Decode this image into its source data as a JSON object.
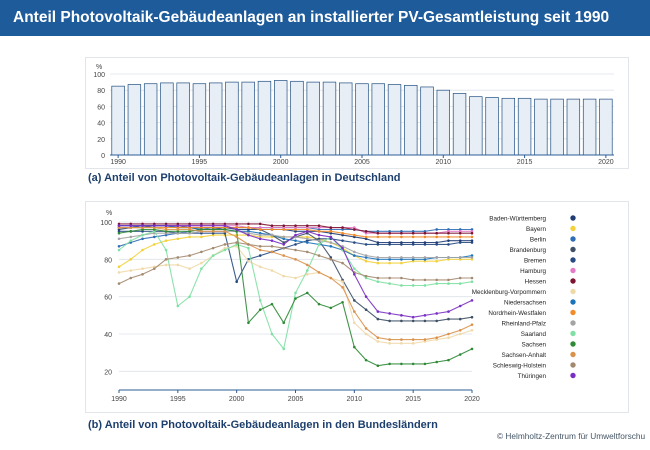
{
  "header": {
    "title": "Anteil Photovoltaik-Gebäudeanlagen an installierter PV-Gesamtleistung seit 1990"
  },
  "captions": {
    "a": "(a) Anteil von Photovoltaik-Gebäudeanlagen in Deutschland",
    "b": "(b) Anteil von Photovoltaik-Gebäudeanlagen in den Bundesländern"
  },
  "footer": {
    "copyright": "© Helmholtz-Zentrum für Umweltforschu"
  },
  "colors": {
    "header_bg": "#1d5b9b",
    "bar_fill": "#e8eef5",
    "bar_stroke": "#1f4f82",
    "grid": "#dde3ea"
  },
  "chart_data": [
    {
      "type": "bar",
      "ylabel": "%",
      "ylim": [
        0,
        100
      ],
      "yticks": [
        0,
        20,
        40,
        60,
        80,
        100
      ],
      "xticks": [
        1990,
        1995,
        2000,
        2005,
        2010,
        2015,
        2020
      ],
      "grid": true,
      "categories": [
        1990,
        1991,
        1992,
        1993,
        1994,
        1995,
        1996,
        1997,
        1998,
        1999,
        2000,
        2001,
        2002,
        2003,
        2004,
        2005,
        2006,
        2007,
        2008,
        2009,
        2010,
        2011,
        2012,
        2013,
        2014,
        2015,
        2016,
        2017,
        2018,
        2019,
        2020
      ],
      "values": [
        85,
        87,
        88,
        89,
        89,
        88,
        89,
        90,
        90,
        91,
        92,
        91,
        90,
        90,
        89,
        88,
        88,
        87,
        86,
        84,
        80,
        76,
        72,
        71,
        70,
        70,
        69,
        69,
        69,
        69,
        69
      ]
    },
    {
      "type": "line",
      "ylabel": "%",
      "ylim": [
        10,
        100
      ],
      "yticks": [
        20,
        40,
        60,
        80,
        100
      ],
      "xlim": [
        1990,
        2020
      ],
      "xticks": [
        1990,
        1995,
        2000,
        2005,
        2010,
        2015,
        2020
      ],
      "grid": true,
      "legend_position": "right",
      "x": [
        1990,
        1991,
        1992,
        1993,
        1994,
        1995,
        1996,
        1997,
        1998,
        1999,
        2000,
        2001,
        2002,
        2003,
        2004,
        2005,
        2006,
        2007,
        2008,
        2009,
        2010,
        2011,
        2012,
        2013,
        2014,
        2015,
        2016,
        2017,
        2018,
        2019,
        2020
      ],
      "series": [
        {
          "name": "Baden-Württemberg",
          "color": "#1f3c73",
          "values": [
            96,
            97,
            98,
            98,
            98,
            97,
            97,
            96,
            96,
            97,
            96,
            96,
            96,
            96,
            96,
            95,
            95,
            95,
            94,
            93,
            92,
            91,
            89,
            89,
            89,
            89,
            89,
            89,
            90,
            90,
            90
          ]
        },
        {
          "name": "Bayern",
          "color": "#f2d13a",
          "values": [
            76,
            80,
            85,
            88,
            90,
            91,
            92,
            92,
            93,
            93,
            93,
            93,
            92,
            92,
            92,
            92,
            92,
            91,
            89,
            86,
            82,
            79,
            78,
            78,
            78,
            79,
            79,
            79,
            80,
            80,
            80
          ]
        },
        {
          "name": "Berlin",
          "color": "#2f6db5",
          "values": [
            87,
            89,
            91,
            92,
            93,
            94,
            95,
            96,
            97,
            97,
            97,
            97,
            97,
            97,
            97,
            97,
            97,
            96,
            96,
            96,
            96,
            95,
            95,
            95,
            95,
            95,
            95,
            96,
            96,
            96,
            96
          ]
        },
        {
          "name": "Brandenburg",
          "color": "#3e4f66",
          "values": [
            97,
            97,
            97,
            98,
            98,
            98,
            97,
            97,
            97,
            97,
            97,
            97,
            96,
            93,
            89,
            92,
            94,
            90,
            81,
            69,
            58,
            53,
            48,
            47,
            47,
            47,
            47,
            47,
            48,
            48,
            49
          ]
        },
        {
          "name": "Bremen",
          "color": "#274a82",
          "values": [
            95,
            95,
            95,
            95,
            95,
            94,
            94,
            94,
            94,
            94,
            68,
            80,
            82,
            84,
            86,
            88,
            90,
            91,
            91,
            90,
            89,
            88,
            88,
            88,
            88,
            88,
            88,
            88,
            88,
            89,
            89
          ]
        },
        {
          "name": "Hamburg",
          "color": "#e37bc9",
          "values": [
            98,
            98,
            98,
            98,
            98,
            98,
            98,
            98,
            98,
            98,
            98,
            97,
            97,
            97,
            97,
            97,
            97,
            97,
            97,
            97,
            97,
            94,
            94,
            94,
            94,
            94,
            94,
            94,
            95,
            95,
            95
          ]
        },
        {
          "name": "Hessen",
          "color": "#7e1433",
          "values": [
            99,
            99,
            99,
            99,
            99,
            99,
            99,
            99,
            99,
            99,
            99,
            99,
            99,
            98,
            98,
            98,
            98,
            98,
            97,
            97,
            96,
            95,
            94,
            94,
            94,
            94,
            94,
            94,
            94,
            94,
            94
          ]
        },
        {
          "name": "Mecklenburg-Vorpommern",
          "color": "#f0d9a8",
          "values": [
            73,
            74,
            75,
            76,
            77,
            77,
            75,
            78,
            82,
            86,
            87,
            79,
            76,
            74,
            71,
            70,
            72,
            73,
            70,
            68,
            46,
            40,
            36,
            35,
            35,
            35,
            36,
            37,
            38,
            40,
            42
          ]
        },
        {
          "name": "Niedersachsen",
          "color": "#1e73b8",
          "values": [
            98,
            98,
            98,
            98,
            98,
            97,
            97,
            96,
            96,
            96,
            95,
            95,
            94,
            93,
            91,
            90,
            89,
            88,
            87,
            85,
            82,
            81,
            80,
            80,
            80,
            80,
            80,
            81,
            81,
            81,
            82
          ]
        },
        {
          "name": "Nordrhein-Westfalen",
          "color": "#f08c2a",
          "values": [
            97,
            97,
            97,
            97,
            97,
            97,
            97,
            97,
            97,
            97,
            97,
            97,
            96,
            96,
            96,
            96,
            96,
            95,
            95,
            94,
            93,
            92,
            92,
            92,
            92,
            92,
            92,
            92,
            92,
            92,
            92
          ]
        },
        {
          "name": "Rheinland-Pfalz",
          "color": "#a4a4a6",
          "values": [
            91,
            92,
            93,
            94,
            94,
            94,
            94,
            95,
            95,
            95,
            95,
            94,
            93,
            93,
            92,
            92,
            91,
            90,
            89,
            87,
            84,
            82,
            81,
            81,
            81,
            81,
            81,
            81,
            81,
            81,
            81
          ]
        },
        {
          "name": "Saarland",
          "color": "#7fe0a3",
          "values": [
            85,
            90,
            93,
            95,
            85,
            55,
            60,
            75,
            82,
            85,
            88,
            86,
            58,
            40,
            32,
            62,
            74,
            88,
            92,
            85,
            75,
            70,
            68,
            67,
            66,
            66,
            66,
            67,
            67,
            67,
            68
          ]
        },
        {
          "name": "Sachsen",
          "color": "#2f8a36",
          "values": [
            94,
            95,
            96,
            96,
            95,
            95,
            95,
            96,
            96,
            96,
            95,
            46,
            53,
            56,
            46,
            59,
            62,
            56,
            54,
            57,
            33,
            26,
            23,
            24,
            24,
            24,
            24,
            25,
            26,
            29,
            32
          ]
        },
        {
          "name": "Sachsen-Anhalt",
          "color": "#d9924c",
          "values": [
            97,
            97,
            97,
            97,
            96,
            96,
            96,
            95,
            95,
            95,
            92,
            88,
            85,
            84,
            82,
            80,
            77,
            73,
            70,
            65,
            52,
            43,
            38,
            37,
            37,
            37,
            37,
            38,
            40,
            42,
            45
          ]
        },
        {
          "name": "Schleswig-Holstein",
          "color": "#a38a6f",
          "values": [
            67,
            70,
            72,
            75,
            80,
            81,
            82,
            84,
            86,
            88,
            89,
            88,
            87,
            87,
            86,
            85,
            84,
            82,
            80,
            78,
            73,
            71,
            70,
            70,
            70,
            69,
            69,
            69,
            69,
            70,
            70
          ]
        },
        {
          "name": "Thüringen",
          "color": "#7a2fc2",
          "values": [
            98,
            98,
            98,
            98,
            98,
            98,
            98,
            98,
            98,
            98,
            96,
            93,
            91,
            90,
            88,
            93,
            95,
            93,
            92,
            86,
            72,
            60,
            52,
            51,
            50,
            49,
            50,
            51,
            52,
            55,
            58
          ]
        }
      ]
    }
  ]
}
